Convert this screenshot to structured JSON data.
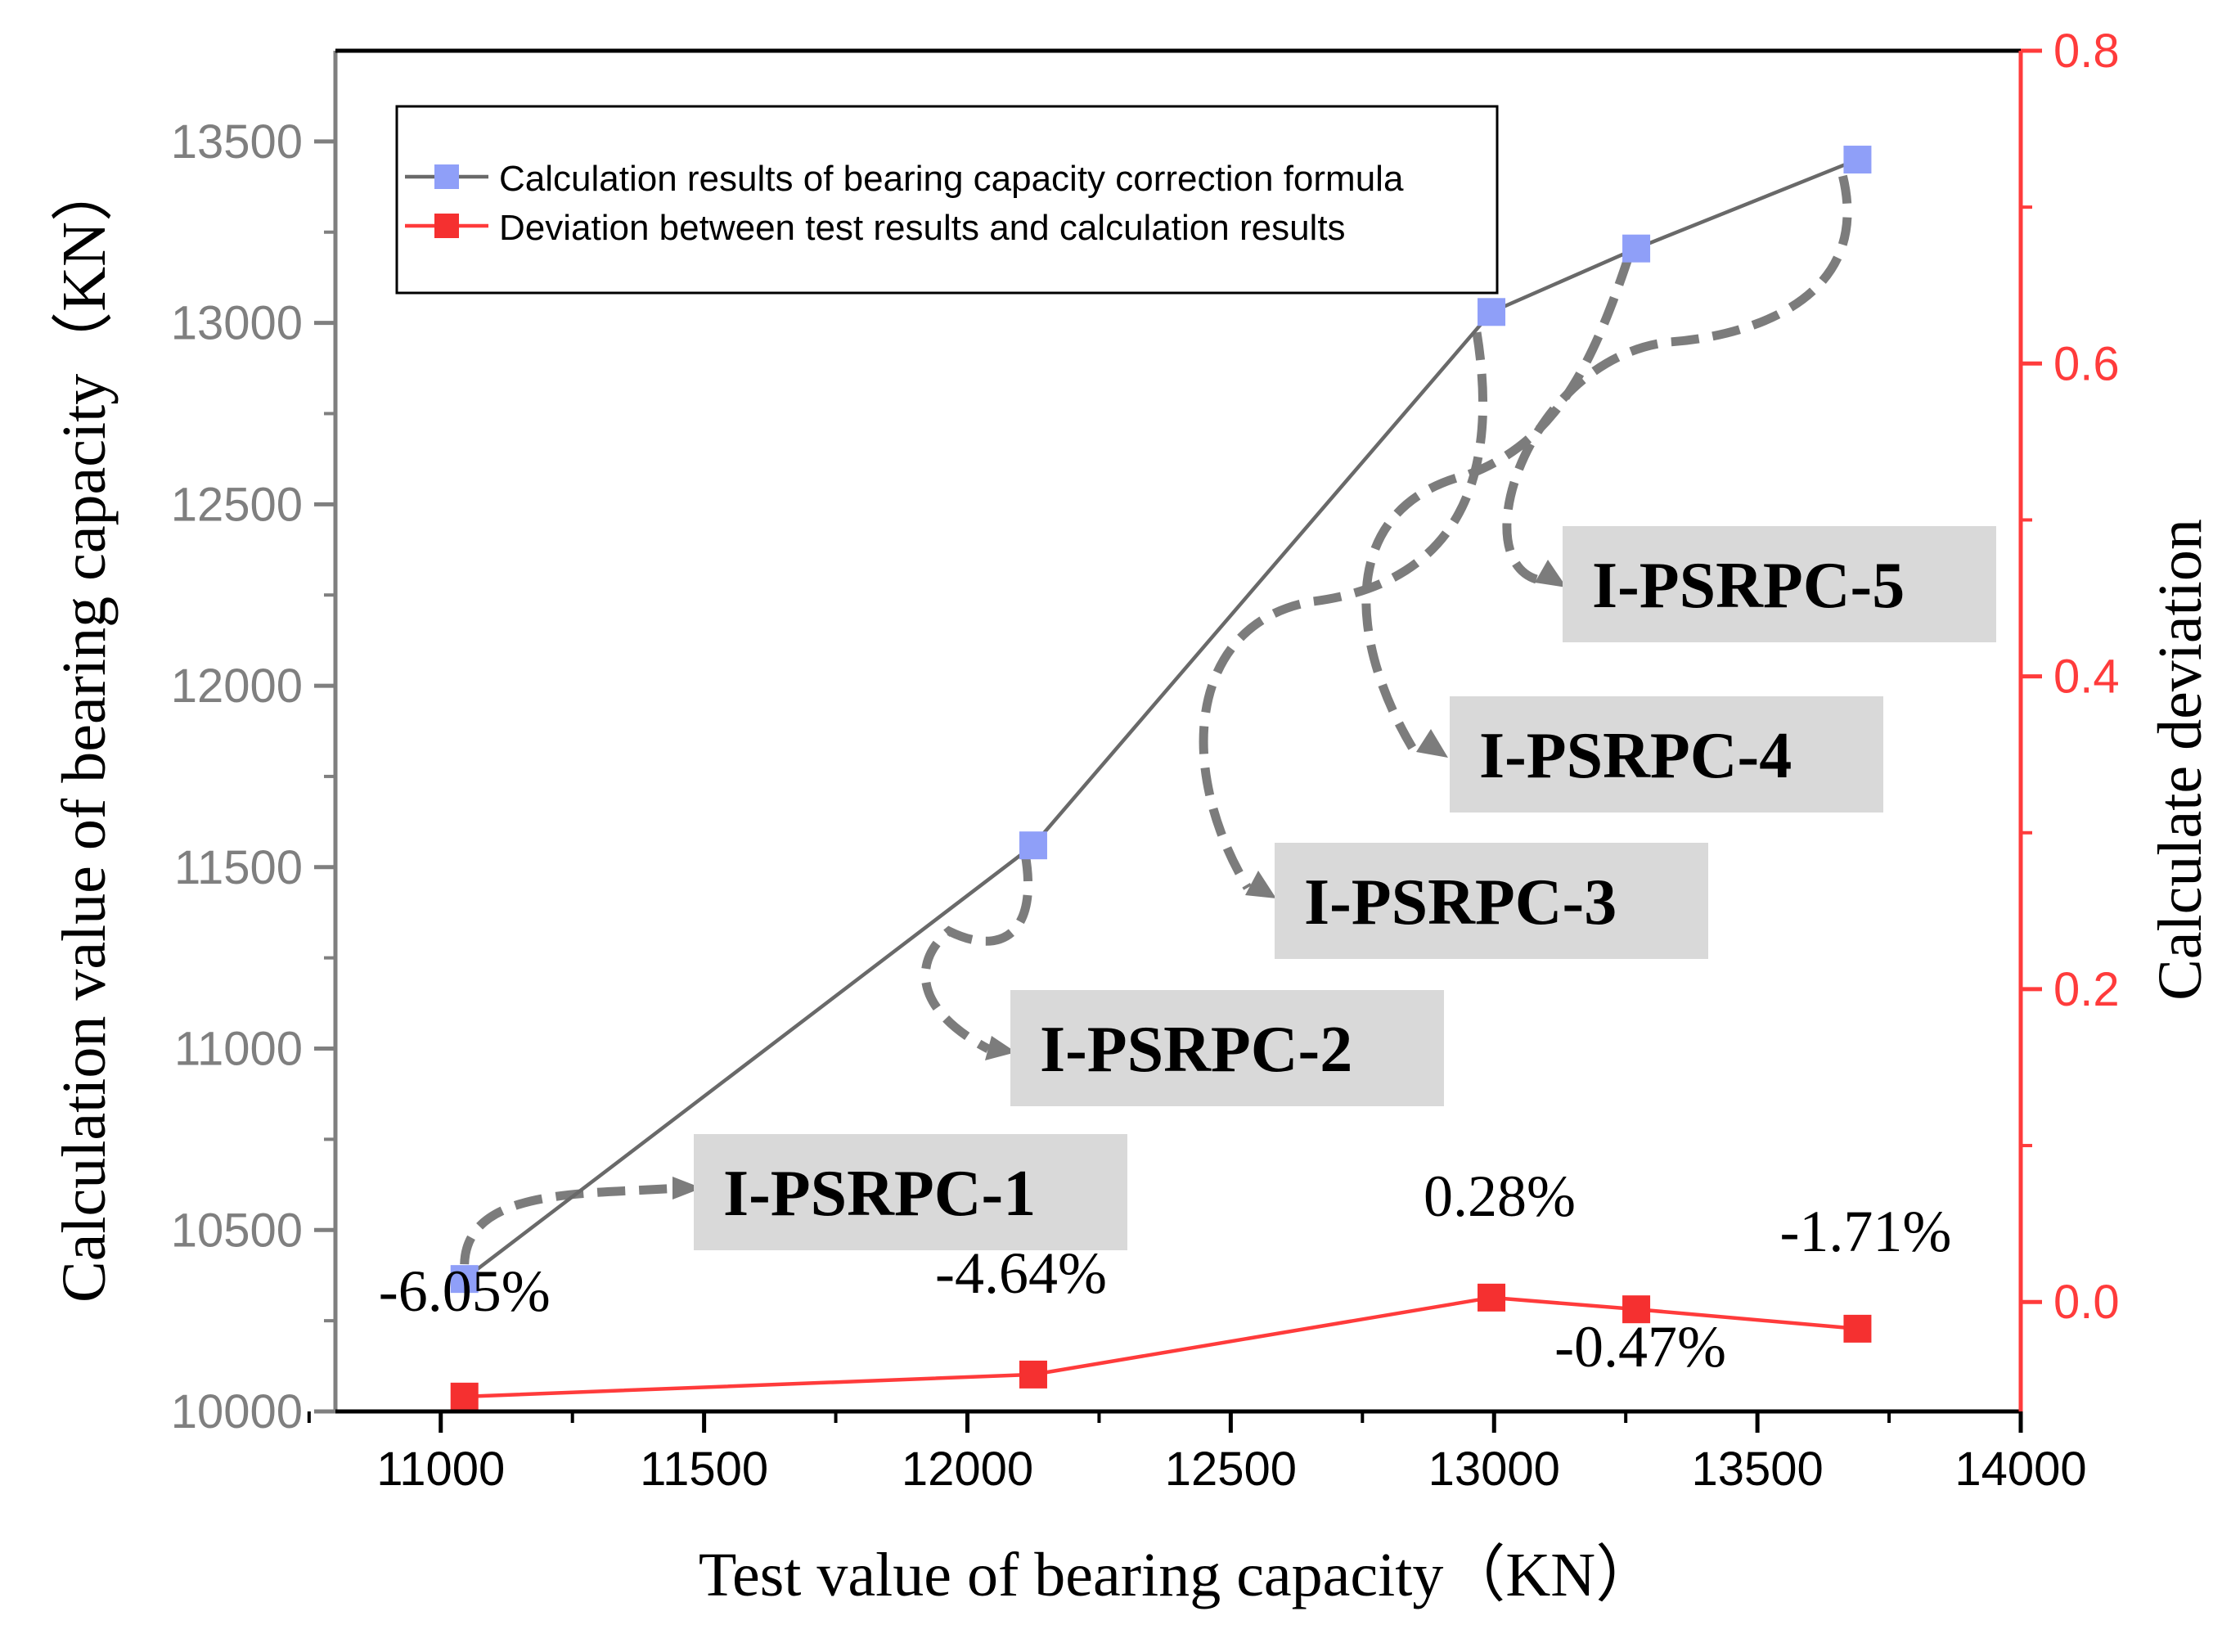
{
  "colors": {
    "left_axis": "#7f7f7f",
    "right_axis": "#ff3b3b",
    "calc_line": "#696969",
    "calc_marker": "#8f9ff8",
    "dev_line": "#ff3b3b",
    "dev_marker": "#f53030",
    "arrow": "#7c7c7c",
    "label_box": "#d9d9d9"
  },
  "chart_data": {
    "type": "line",
    "x_axis": {
      "label": "Test value of bearing capacity（KN）",
      "range": [
        10800,
        14000
      ],
      "ticks": [
        "11000",
        "11500",
        "12000",
        "12500",
        "13000",
        "13500",
        "14000"
      ],
      "tick_values": [
        11000,
        11500,
        12000,
        12500,
        13000,
        13500,
        14000
      ]
    },
    "y_left": {
      "label": "Calculation value of bearing capacity（KN）",
      "range": [
        10000,
        13750
      ],
      "ticks": [
        "10000",
        "10500",
        "11000",
        "11500",
        "12000",
        "12500",
        "13000",
        "13500"
      ],
      "tick_values": [
        10000,
        10500,
        11000,
        11500,
        12000,
        12500,
        13000,
        13500
      ]
    },
    "y_right": {
      "label": "Calculate deviation",
      "range": [
        -0.07,
        0.8
      ],
      "ticks": [
        "0.0",
        "0.2",
        "0.4",
        "0.6",
        "0.8"
      ],
      "tick_values": [
        0.0,
        0.2,
        0.4,
        0.6,
        0.8
      ]
    },
    "series": [
      {
        "name": "Calculation results of bearing capacity correction formula",
        "axis": "left",
        "x": [
          11045,
          12125,
          12995,
          13270,
          13690
        ],
        "y": [
          10365,
          11560,
          13030,
          13205,
          13450
        ]
      },
      {
        "name": "Deviation between test results and calculation results",
        "axis": "right",
        "x": [
          11045,
          12125,
          12995,
          13270,
          13690
        ],
        "y": [
          -0.0605,
          -0.0464,
          0.0028,
          -0.0047,
          -0.0171
        ]
      }
    ],
    "point_labels": [
      "-6.05%",
      "-4.64%",
      "0.28%",
      "-0.47%",
      "-1.71%"
    ],
    "specimen_labels": [
      "I-PSRPC-1",
      "I-PSRPC-2",
      "I-PSRPC-3",
      "I-PSRPC-4",
      "I-PSRPC-5"
    ],
    "legend_position": "top-left"
  }
}
